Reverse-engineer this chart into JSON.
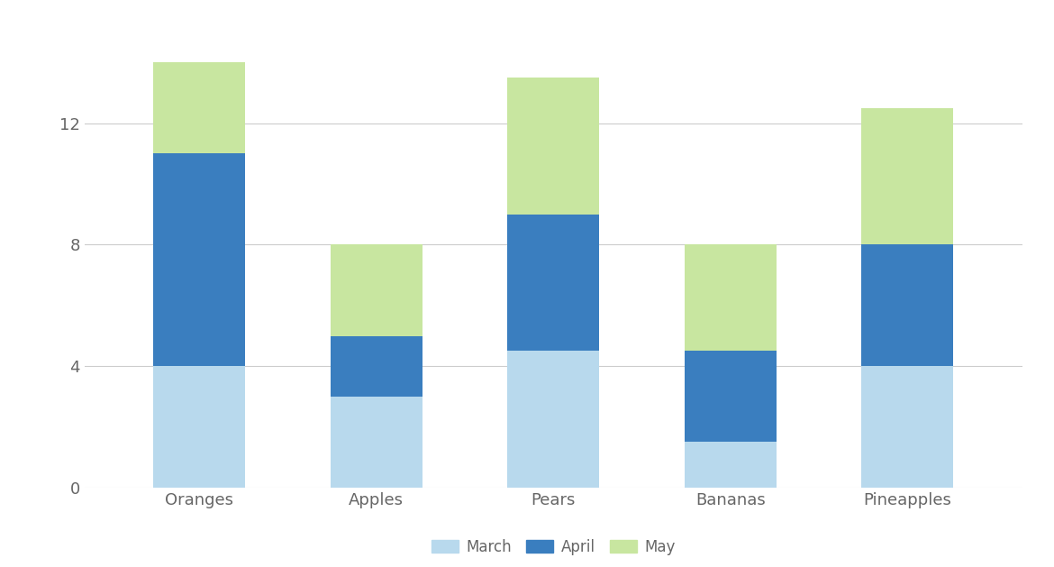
{
  "categories": [
    "Oranges",
    "Apples",
    "Pears",
    "Bananas",
    "Pineapples"
  ],
  "march": [
    4.0,
    3.0,
    4.5,
    1.5,
    4.0
  ],
  "april": [
    7.0,
    2.0,
    4.5,
    3.0,
    4.0
  ],
  "may": [
    3.0,
    3.0,
    4.5,
    3.5,
    4.5
  ],
  "color_march": "#b8d9ed",
  "color_april": "#3a7ebf",
  "color_may": "#c8e6a0",
  "background_color": "#ffffff",
  "ylabel_ticks": [
    0,
    4,
    8,
    12
  ],
  "ylim": [
    0,
    15.5
  ],
  "legend_labels": [
    "March",
    "April",
    "May"
  ],
  "bar_width": 0.52,
  "grid_color": "#cccccc",
  "tick_label_color": "#666666",
  "tick_fontsize": 13
}
